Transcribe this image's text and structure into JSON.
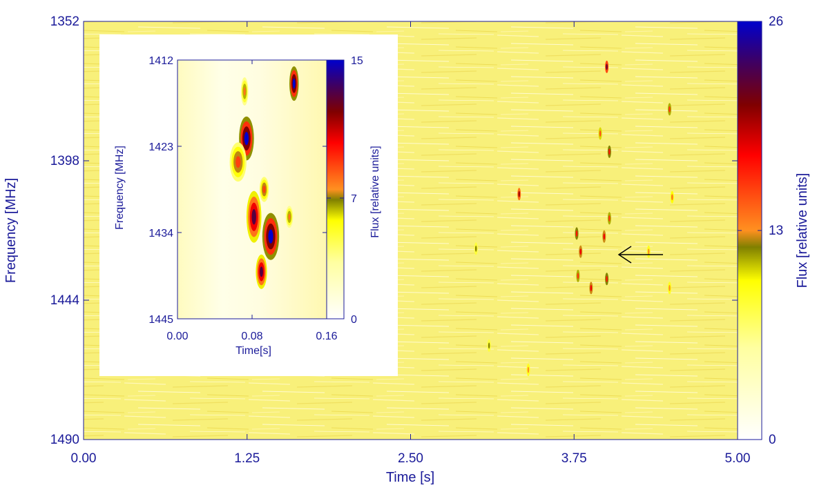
{
  "chart_data": [
    {
      "type": "heatmap",
      "xlabel": "Time [s]",
      "ylabel": "Frequency [MHz]",
      "xlim": [
        0.0,
        5.0
      ],
      "ylim": [
        1352,
        1490
      ],
      "y_inverted": true,
      "x_ticks": [
        "0.00",
        "1.25",
        "2.50",
        "3.75",
        "5.00"
      ],
      "y_ticks": [
        "1352",
        "1398",
        "1444",
        "1490"
      ],
      "colorbar": {
        "label": "Flux [relative units]",
        "range": [
          0,
          26
        ],
        "ticks": [
          "26",
          "13",
          "0"
        ],
        "colors": [
          "#ffffff",
          "#ffff00",
          "#808000",
          "#ff8c00",
          "#ff0000",
          "#800000",
          "#400080",
          "#0000cc"
        ]
      },
      "background_color": "#f8f07a",
      "annotation": {
        "type": "arrow",
        "direction": "left",
        "points_to": [
          4.0,
          1430
        ]
      },
      "bright_spots": [
        {
          "x": 3.33,
          "y": 1409,
          "v": 20
        },
        {
          "x": 3.77,
          "y": 1422,
          "v": 17
        },
        {
          "x": 3.8,
          "y": 1428,
          "v": 18
        },
        {
          "x": 3.78,
          "y": 1436,
          "v": 16
        },
        {
          "x": 3.88,
          "y": 1440,
          "v": 18
        },
        {
          "x": 3.95,
          "y": 1389,
          "v": 15
        },
        {
          "x": 4.0,
          "y": 1367,
          "v": 22
        },
        {
          "x": 4.02,
          "y": 1395,
          "v": 17
        },
        {
          "x": 3.98,
          "y": 1423,
          "v": 18
        },
        {
          "x": 4.0,
          "y": 1437,
          "v": 17
        },
        {
          "x": 4.02,
          "y": 1417,
          "v": 16
        },
        {
          "x": 4.48,
          "y": 1381,
          "v": 16
        },
        {
          "x": 4.5,
          "y": 1410,
          "v": 14
        },
        {
          "x": 4.48,
          "y": 1440,
          "v": 13
        },
        {
          "x": 4.32,
          "y": 1428,
          "v": 13
        },
        {
          "x": 3.0,
          "y": 1427,
          "v": 12
        },
        {
          "x": 3.4,
          "y": 1467,
          "v": 13
        },
        {
          "x": 3.1,
          "y": 1459,
          "v": 12
        }
      ]
    },
    {
      "type": "heatmap",
      "title": "",
      "xlabel": "Time[s]",
      "ylabel": "Frequency [MHz]",
      "xlim": [
        0.0,
        0.16
      ],
      "ylim": [
        1412,
        1445
      ],
      "y_inverted": true,
      "x_ticks": [
        "0.00",
        "0.08",
        "0.16"
      ],
      "y_ticks": [
        "1412",
        "1423",
        "1434",
        "1445"
      ],
      "colorbar": {
        "label": "Flux [relative units]",
        "range": [
          0,
          15
        ],
        "ticks": [
          "15",
          "7",
          "0"
        ]
      },
      "bright_spots": [
        {
          "x": 0.072,
          "y": 1416,
          "v": 8,
          "rx": 0.004,
          "ry": 1.8
        },
        {
          "x": 0.125,
          "y": 1415,
          "v": 15,
          "rx": 0.005,
          "ry": 2.2
        },
        {
          "x": 0.074,
          "y": 1422,
          "v": 15,
          "rx": 0.008,
          "ry": 2.8
        },
        {
          "x": 0.065,
          "y": 1425,
          "v": 9,
          "rx": 0.009,
          "ry": 2.5
        },
        {
          "x": 0.093,
          "y": 1428.5,
          "v": 9,
          "rx": 0.005,
          "ry": 1.6
        },
        {
          "x": 0.082,
          "y": 1432,
          "v": 13,
          "rx": 0.008,
          "ry": 3.3
        },
        {
          "x": 0.1,
          "y": 1434.5,
          "v": 15,
          "rx": 0.009,
          "ry": 3.0
        },
        {
          "x": 0.09,
          "y": 1439,
          "v": 13,
          "rx": 0.006,
          "ry": 2.2
        },
        {
          "x": 0.12,
          "y": 1432,
          "v": 8,
          "rx": 0.004,
          "ry": 1.4
        }
      ]
    }
  ]
}
